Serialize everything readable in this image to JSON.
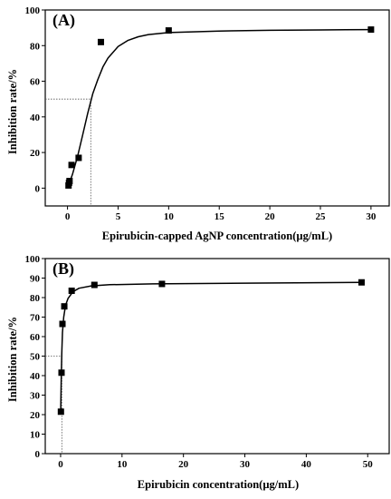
{
  "chart_data": [
    {
      "type": "scatter",
      "panel_label": "(A)",
      "xlabel": "Epirubicin-capped AgNP concentration(µg/mL)",
      "ylabel": "Inhibition rate/%",
      "xlim": [
        -2.2,
        31.8
      ],
      "ylim": [
        -10,
        100
      ],
      "xticks": [
        0,
        5,
        10,
        15,
        20,
        25,
        30
      ],
      "yticks": [
        0,
        20,
        40,
        60,
        80,
        100
      ],
      "grid": false,
      "series": [
        {
          "points": [
            {
              "x": 0.1,
              "y": 1.5
            },
            {
              "x": 0.15,
              "y": 3
            },
            {
              "x": 0.2,
              "y": 4
            },
            {
              "x": 0.4,
              "y": 13
            },
            {
              "x": 1.1,
              "y": 17
            },
            {
              "x": 3.3,
              "y": 82
            },
            {
              "x": 10,
              "y": 88.5
            },
            {
              "x": 30,
              "y": 89
            }
          ],
          "fit_curve": [
            {
              "x": 0,
              "y": 0
            },
            {
              "x": 0.5,
              "y": 8
            },
            {
              "x": 1,
              "y": 18
            },
            {
              "x": 1.5,
              "y": 30
            },
            {
              "x": 2,
              "y": 42
            },
            {
              "x": 2.5,
              "y": 53
            },
            {
              "x": 3,
              "y": 61
            },
            {
              "x": 3.5,
              "y": 68
            },
            {
              "x": 4,
              "y": 73
            },
            {
              "x": 5,
              "y": 79.5
            },
            {
              "x": 6,
              "y": 83
            },
            {
              "x": 7,
              "y": 85
            },
            {
              "x": 8,
              "y": 86.2
            },
            {
              "x": 10,
              "y": 87.3
            },
            {
              "x": 15,
              "y": 88.2
            },
            {
              "x": 20,
              "y": 88.6
            },
            {
              "x": 25,
              "y": 88.8
            },
            {
              "x": 30,
              "y": 89
            }
          ]
        }
      ],
      "ic50_guide": {
        "x": 2.3,
        "y": 50
      }
    },
    {
      "type": "scatter",
      "panel_label": "(B)",
      "xlabel": "Epirubicin concentration(µg/mL)",
      "ylabel": "Inhibition rate/%",
      "xlim": [
        -2.5,
        53.5
      ],
      "ylim": [
        0,
        100
      ],
      "xticks": [
        0,
        10,
        20,
        30,
        40,
        50
      ],
      "yticks": [
        0,
        10,
        20,
        30,
        40,
        50,
        60,
        70,
        80,
        90,
        100
      ],
      "grid": false,
      "series": [
        {
          "points": [
            {
              "x": 0.05,
              "y": 21.5
            },
            {
              "x": 0.15,
              "y": 41.5
            },
            {
              "x": 0.3,
              "y": 66.5
            },
            {
              "x": 0.6,
              "y": 75.5
            },
            {
              "x": 1.8,
              "y": 83.5
            },
            {
              "x": 5.5,
              "y": 86.5
            },
            {
              "x": 16.5,
              "y": 87
            },
            {
              "x": 49,
              "y": 87.8
            }
          ],
          "fit_curve": [
            {
              "x": 0,
              "y": 20
            },
            {
              "x": 0.1,
              "y": 37
            },
            {
              "x": 0.2,
              "y": 52
            },
            {
              "x": 0.3,
              "y": 62
            },
            {
              "x": 0.5,
              "y": 70
            },
            {
              "x": 0.8,
              "y": 76
            },
            {
              "x": 1.2,
              "y": 79.5
            },
            {
              "x": 2,
              "y": 83
            },
            {
              "x": 3,
              "y": 84.8
            },
            {
              "x": 5,
              "y": 86
            },
            {
              "x": 8,
              "y": 86.6
            },
            {
              "x": 15,
              "y": 87
            },
            {
              "x": 30,
              "y": 87.4
            },
            {
              "x": 49,
              "y": 87.8
            }
          ]
        }
      ],
      "ic50_guide": {
        "x": 0.2,
        "y": 50
      }
    }
  ]
}
